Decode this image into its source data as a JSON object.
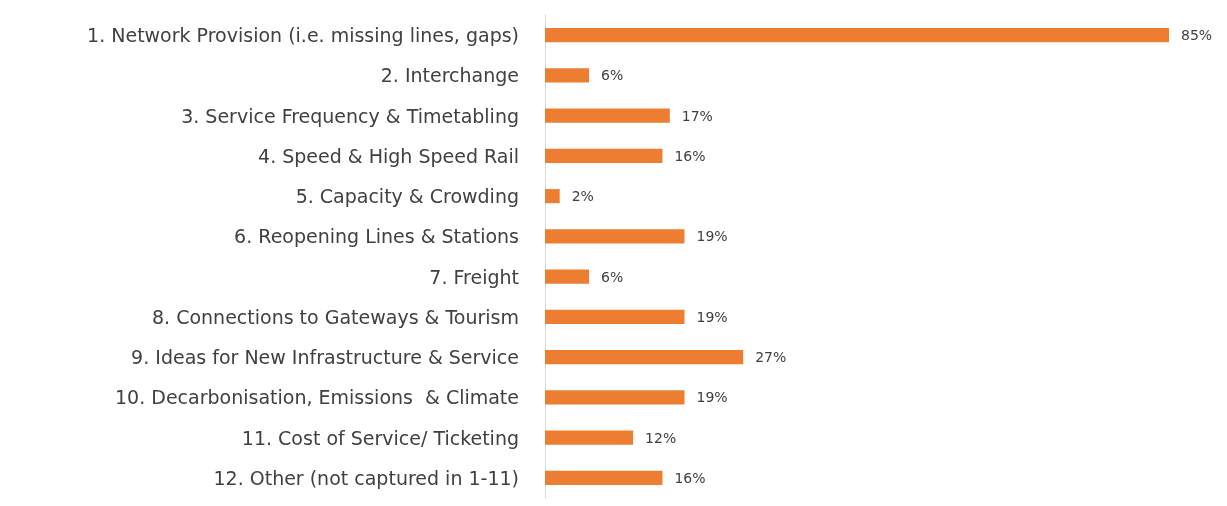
{
  "chart_data": {
    "type": "bar",
    "orientation": "horizontal",
    "categories": [
      "1. Network Provision (i.e. missing lines, gaps)",
      "2. Interchange",
      "3. Service Frequency & Timetabling",
      "4. Speed & High Speed Rail",
      "5. Capacity & Crowding",
      "6. Reopening Lines & Stations",
      "7. Freight",
      "8. Connections to Gateways & Tourism",
      "9. Ideas for New Infrastructure & Service",
      "10. Decarbonisation, Emissions  & Climate",
      "11. Cost of Service/ Ticketing",
      "12. Other (not captured in 1-11)"
    ],
    "values": [
      85,
      6,
      17,
      16,
      2,
      19,
      6,
      19,
      27,
      19,
      12,
      16
    ],
    "value_labels": [
      "85%",
      "6%",
      "17%",
      "16%",
      "2%",
      "19%",
      "6%",
      "19%",
      "27%",
      "19%",
      "12%",
      "16%"
    ],
    "color": "#ed7d31"
  }
}
